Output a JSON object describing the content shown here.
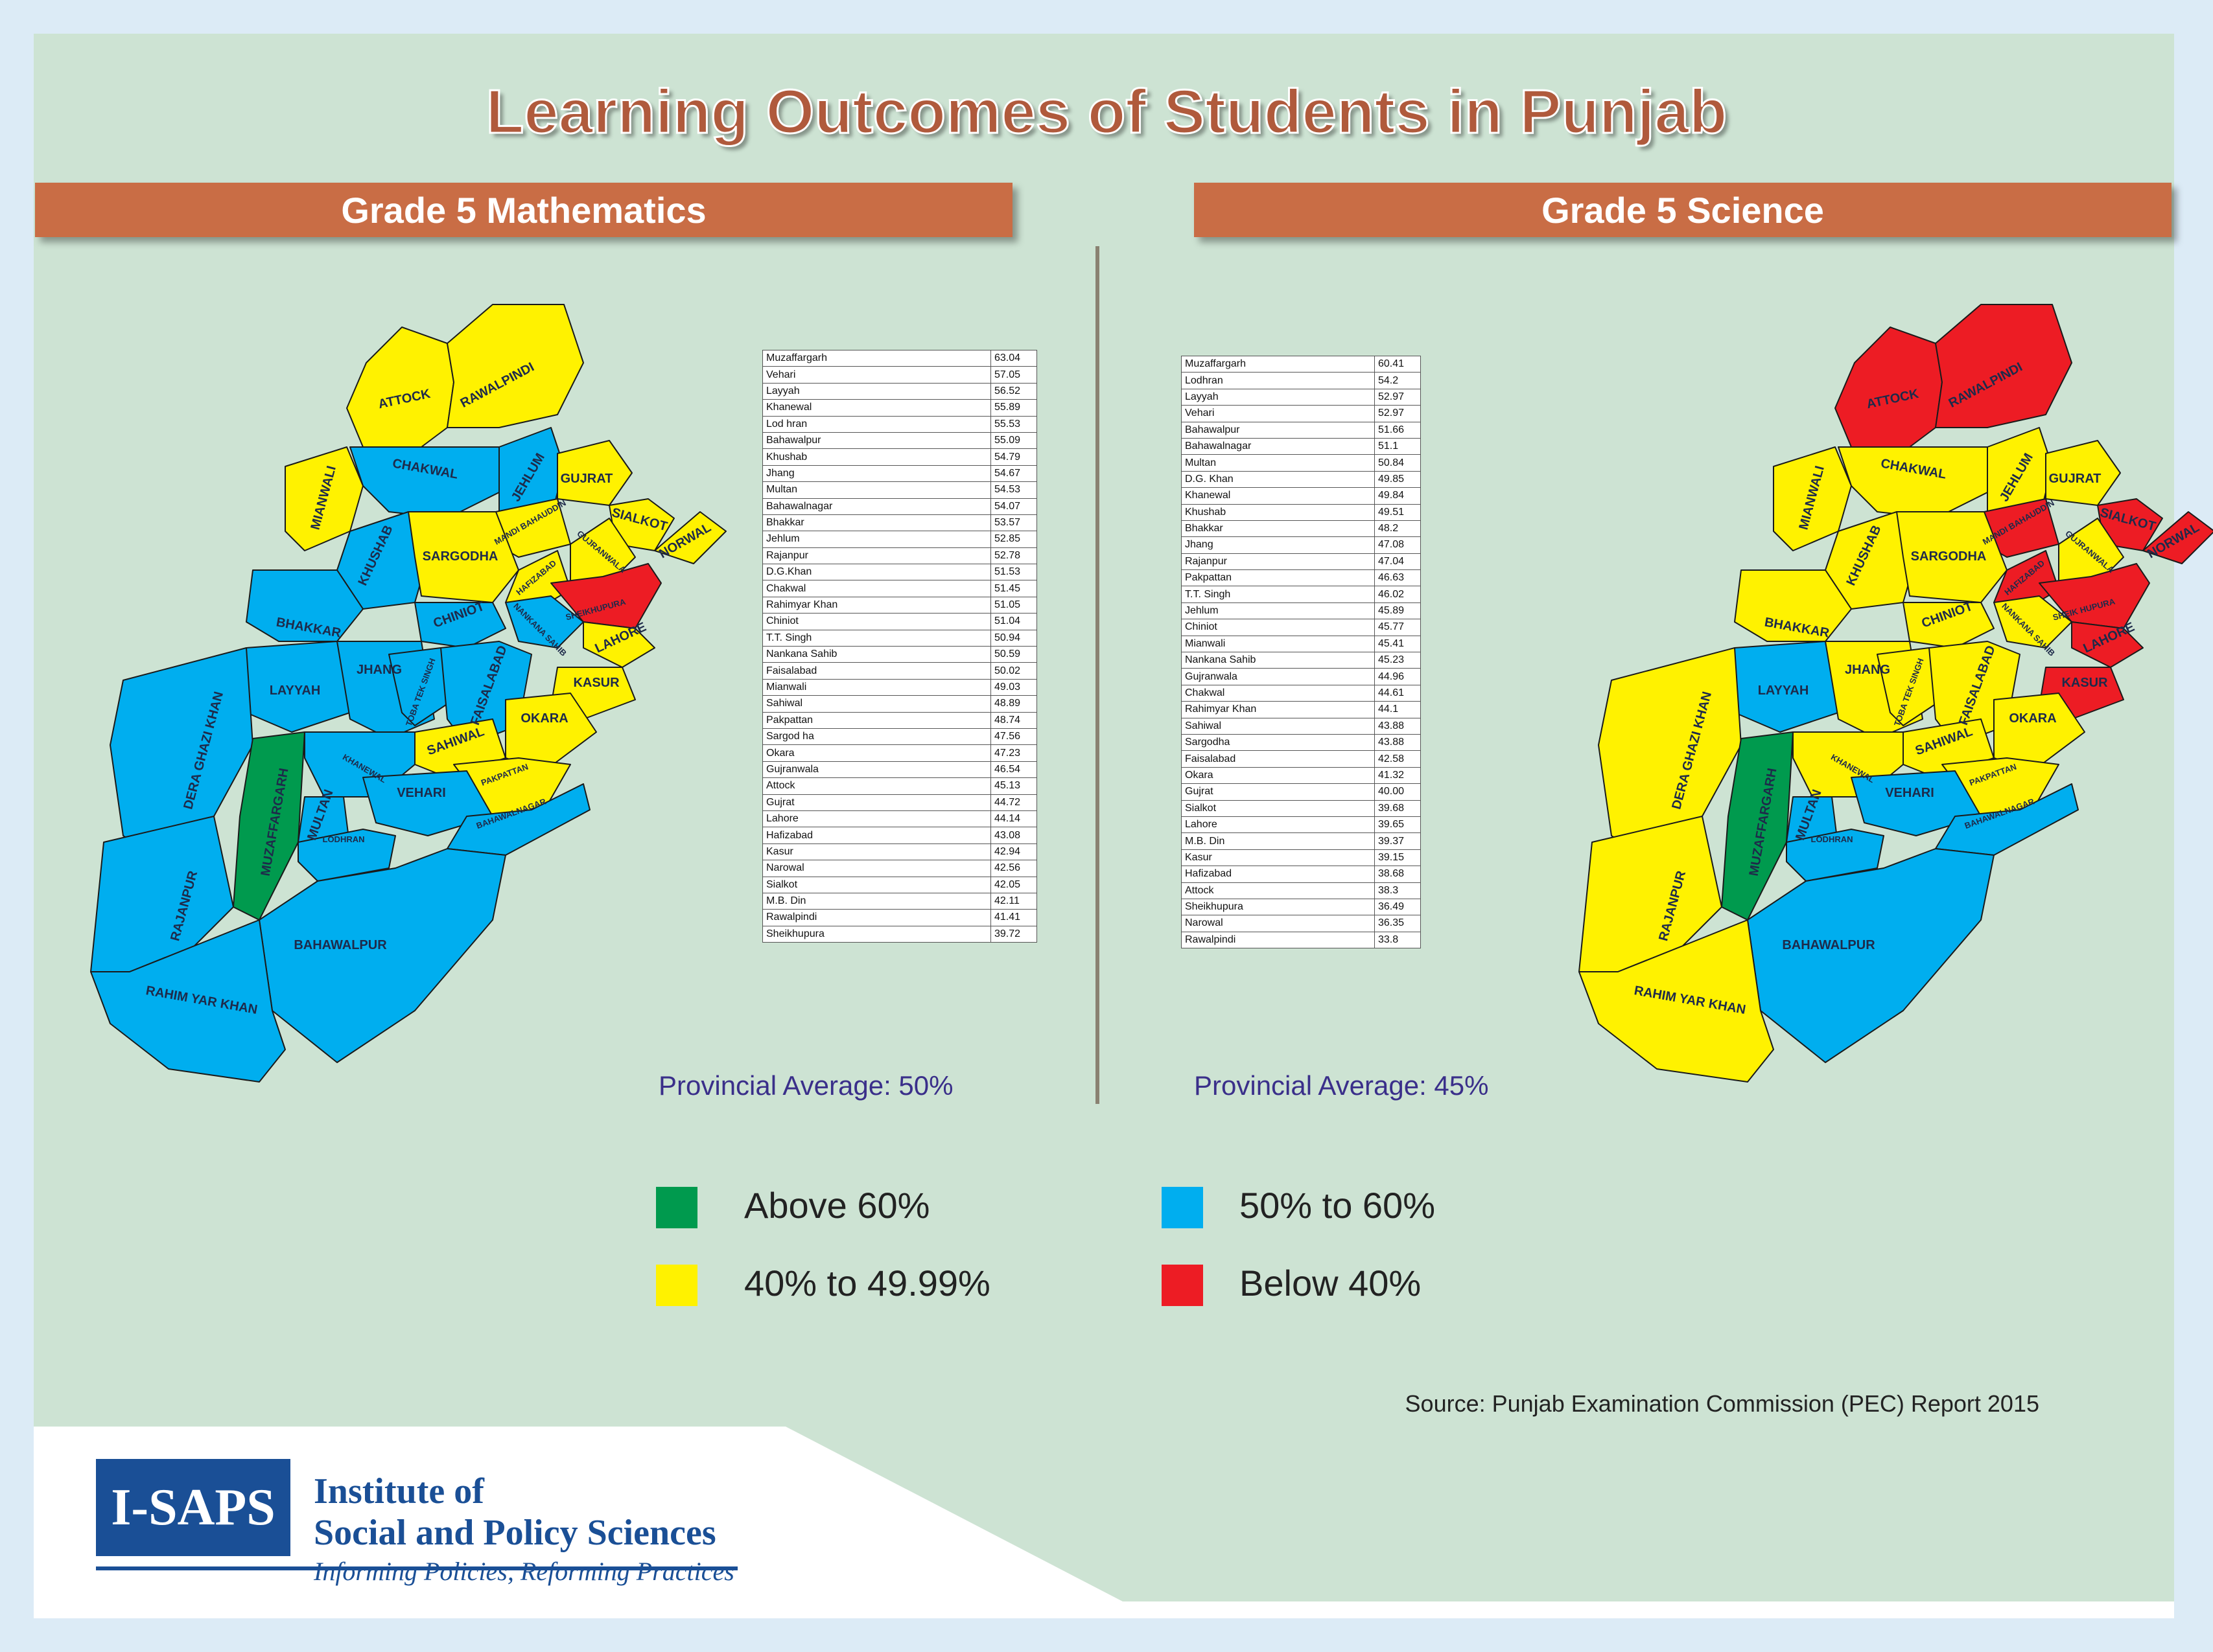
{
  "title": "Learning Outcomes of Students in Punjab",
  "colors": {
    "above_60": "#009a4e",
    "range_50_60": "#00aeef",
    "range_40_50": "#fff200",
    "below_40": "#ed1c24",
    "banner": "#c96d45",
    "background": "#cde3d3"
  },
  "panels": [
    {
      "heading": "Grade 5 Mathematics",
      "average": "Provincial Average: 50%",
      "table": [
        [
          "Muzaffargarh",
          "63.04"
        ],
        [
          "Vehari",
          "57.05"
        ],
        [
          "Layyah",
          "56.52"
        ],
        [
          "Khanewal",
          "55.89"
        ],
        [
          "Lod hran",
          "55.53"
        ],
        [
          "Bahawalpur",
          "55.09"
        ],
        [
          "Khushab",
          "54.79"
        ],
        [
          "Jhang",
          "54.67"
        ],
        [
          "Multan",
          "54.53"
        ],
        [
          "Bahawalnagar",
          "54.07"
        ],
        [
          "Bhakkar",
          "53.57"
        ],
        [
          "Jehlum",
          "52.85"
        ],
        [
          "Rajanpur",
          "52.78"
        ],
        [
          "D.G.Khan",
          "51.53"
        ],
        [
          "Chakwal",
          "51.45"
        ],
        [
          "Rahimyar Khan",
          "51.05"
        ],
        [
          "Chiniot",
          "51.04"
        ],
        [
          "T.T. Singh",
          "50.94"
        ],
        [
          "Nankana Sahib",
          "50.59"
        ],
        [
          "Faisalabad",
          "50.02"
        ],
        [
          "Mianwali",
          "49.03"
        ],
        [
          "Sahiwal",
          "48.89"
        ],
        [
          "Pakpattan",
          "48.74"
        ],
        [
          "Sargod ha",
          "47.56"
        ],
        [
          "Okara",
          "47.23"
        ],
        [
          "Gujranwala",
          "46.54"
        ],
        [
          "Attock",
          "45.13"
        ],
        [
          "Gujrat",
          "44.72"
        ],
        [
          "Lahore",
          "44.14"
        ],
        [
          "Hafizabad",
          "43.08"
        ],
        [
          "Kasur",
          "42.94"
        ],
        [
          "Narowal",
          "42.56"
        ],
        [
          "Sialkot",
          "42.05"
        ],
        [
          "M.B. Din",
          "42.11"
        ],
        [
          "Rawalpindi",
          "41.41"
        ],
        [
          "Sheikhupura",
          "39.72"
        ]
      ],
      "map_labels": {
        "attock": "ATTOCK",
        "rawalpindi": "RAWALPINDI",
        "chakwal": "CHAKWAL",
        "jehlum": "JEHLUM",
        "mianwali": "MIANWALI",
        "gujrat": "GUJRAT",
        "sialkot": "SIALKOT",
        "norwal": "NORWAL",
        "mandi": "MANDI BAHAUDDIN",
        "khushab": "KHUSHAB",
        "sargodha": "SARGODHA",
        "hafizabad": "HAFIZABAD",
        "gujranwala": "GUJRANWALA",
        "sheikhupura": "SHEIKHUPURA",
        "bhakkar": "BHAKKAR",
        "chiniot": "CHINIOT",
        "nankana": "NANKANA SAHIB",
        "lahore": "LAHORE",
        "layyah": "LAYYAH",
        "jhang": "JHANG",
        "toba": "TOBA TEK SINGH",
        "faisalabad": "FAISALABAD",
        "kasur": "KASUR",
        "dgkhan": "DERA GHAZI KHAN",
        "muzaffargarh": "MUZAFFARGARH",
        "sahiwal": "SAHIWAL",
        "okara": "OKARA",
        "khanewal": "KHANEWAL",
        "pakpattan": "PAKPATTAN",
        "multan": "MULTAN",
        "vehari": "VEHARI",
        "bahawalnagar": "BAHAWALNAGAR",
        "lodhran": "LODHRAN",
        "rajanpur": "RAJANPUR",
        "bahawalpur": "BAHAWALPUR",
        "rahimyarkhan": "RAHIM YAR KHAN"
      },
      "district_band": {
        "attock": "range_40_50",
        "rawalpindi": "range_40_50",
        "chakwal": "range_50_60",
        "jehlum": "range_50_60",
        "mianwali": "range_40_50",
        "gujrat": "range_40_50",
        "sialkot": "range_40_50",
        "norwal": "range_40_50",
        "mandi": "range_40_50",
        "khushab": "range_50_60",
        "sargodha": "range_40_50",
        "hafizabad": "range_40_50",
        "gujranwala": "range_40_50",
        "sheikhupura": "below_40",
        "bhakkar": "range_50_60",
        "chiniot": "range_50_60",
        "nankana": "range_50_60",
        "lahore": "range_40_50",
        "layyah": "range_50_60",
        "jhang": "range_50_60",
        "toba": "range_50_60",
        "faisalabad": "range_50_60",
        "kasur": "range_40_50",
        "dgkhan": "range_50_60",
        "muzaffargarh": "above_60",
        "sahiwal": "range_40_50",
        "okara": "range_40_50",
        "khanewal": "range_50_60",
        "pakpattan": "range_40_50",
        "multan": "range_50_60",
        "vehari": "range_50_60",
        "bahawalnagar": "range_50_60",
        "lodhran": "range_50_60",
        "rajanpur": "range_50_60",
        "bahawalpur": "range_50_60",
        "rahimyarkhan": "range_50_60"
      }
    },
    {
      "heading": "Grade 5 Science",
      "average": "Provincial Average: 45%",
      "table": [
        [
          "Muzaffargarh",
          "60.41"
        ],
        [
          "Lodhran",
          "54.2"
        ],
        [
          "Layyah",
          "52.97"
        ],
        [
          "Vehari",
          "52.97"
        ],
        [
          "Bahawalpur",
          "51.66"
        ],
        [
          "Bahawalnagar",
          "51.1"
        ],
        [
          "Multan",
          "50.84"
        ],
        [
          "D.G. Khan",
          "49.85"
        ],
        [
          "Khanewal",
          "49.84"
        ],
        [
          "Khushab",
          "49.51"
        ],
        [
          "Bhakkar",
          "48.2"
        ],
        [
          "Jhang",
          "47.08"
        ],
        [
          "Rajanpur",
          "47.04"
        ],
        [
          "Pakpattan",
          "46.63"
        ],
        [
          "T.T. Singh",
          "46.02"
        ],
        [
          "Jehlum",
          "45.89"
        ],
        [
          "Chiniot",
          "45.77"
        ],
        [
          "Mianwali",
          "45.41"
        ],
        [
          "Nankana Sahib",
          "45.23"
        ],
        [
          "Gujranwala",
          "44.96"
        ],
        [
          "Chakwal",
          "44.61"
        ],
        [
          "Rahimyar Khan",
          "44.1"
        ],
        [
          "Sahiwal",
          "43.88"
        ],
        [
          "Sargodha",
          "43.88"
        ],
        [
          "Faisalabad",
          "42.58"
        ],
        [
          "Okara",
          "41.32"
        ],
        [
          "Gujrat",
          "40.00"
        ],
        [
          "Sialkot",
          "39.68"
        ],
        [
          "Lahore",
          "39.65"
        ],
        [
          "M.B. Din",
          "39.37"
        ],
        [
          "Kasur",
          "39.15"
        ],
        [
          "Hafizabad",
          "38.68"
        ],
        [
          "Attock",
          "38.3"
        ],
        [
          "Sheikhupura",
          "36.49"
        ],
        [
          "Narowal",
          "36.35"
        ],
        [
          "Rawalpindi",
          "33.8"
        ]
      ],
      "map_labels": {
        "attock": "ATTOCK",
        "rawalpindi": "RAWALPINDI",
        "chakwal": "CHAKWAL",
        "jehlum": "JEHLUM",
        "mianwali": "MIANWALI",
        "gujrat": "GUJRAT",
        "sialkot": "SIALKOT",
        "norwal": "NORWAL",
        "mandi": "MANDI BAHAUDDIN",
        "khushab": "KHUSHAB",
        "sargodha": "SARGODHA",
        "hafizabad": "HAFIZABAD",
        "gujranwala": "GUJRANWALA",
        "sheikhupura": "SHEIK HUPURA",
        "bhakkar": "BHAKKAR",
        "chiniot": "CHINIOT",
        "nankana": "NANKANA SAHIB",
        "lahore": "LAHORE",
        "layyah": "LAYYAH",
        "jhang": "JHANG",
        "toba": "TOBA TEK SINGH",
        "faisalabad": "FAISALABAD",
        "kasur": "KASUR",
        "dgkhan": "DERA GHAZI KHAN",
        "muzaffargarh": "MUZAFFARGARH",
        "sahiwal": "SAHIWAL",
        "okara": "OKARA",
        "khanewal": "KHANEWAL",
        "pakpattan": "PAKPATTAN",
        "multan": "MULTAN",
        "vehari": "VEHARI",
        "bahawalnagar": "BAHAWALNAGAR",
        "lodhran": "LODHRAN",
        "rajanpur": "RAJANPUR",
        "bahawalpur": "BAHAWALPUR",
        "rahimyarkhan": "RAHIM YAR KHAN"
      },
      "district_band": {
        "attock": "below_40",
        "rawalpindi": "below_40",
        "chakwal": "range_40_50",
        "jehlum": "range_40_50",
        "mianwali": "range_40_50",
        "gujrat": "range_40_50",
        "sialkot": "below_40",
        "norwal": "below_40",
        "mandi": "below_40",
        "khushab": "range_40_50",
        "sargodha": "range_40_50",
        "hafizabad": "below_40",
        "gujranwala": "range_40_50",
        "sheikhupura": "below_40",
        "bhakkar": "range_40_50",
        "chiniot": "range_40_50",
        "nankana": "range_40_50",
        "lahore": "below_40",
        "layyah": "range_50_60",
        "jhang": "range_40_50",
        "toba": "range_40_50",
        "faisalabad": "range_40_50",
        "kasur": "below_40",
        "dgkhan": "range_40_50",
        "muzaffargarh": "above_60",
        "sahiwal": "range_40_50",
        "okara": "range_40_50",
        "khanewal": "range_40_50",
        "pakpattan": "range_40_50",
        "multan": "range_50_60",
        "vehari": "range_50_60",
        "bahawalnagar": "range_50_60",
        "lodhran": "range_50_60",
        "rajanpur": "range_40_50",
        "bahawalpur": "range_50_60",
        "rahimyarkhan": "range_40_50"
      }
    }
  ],
  "legend": [
    {
      "label": "Above 60%",
      "band": "above_60"
    },
    {
      "label": "50% to 60%",
      "band": "range_50_60"
    },
    {
      "label": "40% to 49.99%",
      "band": "range_40_50"
    },
    {
      "label": "Below 40%",
      "band": "below_40"
    }
  ],
  "source": "Source: Punjab Examination Commission (PEC) Report 2015",
  "logo": {
    "mark": "I-SAPS",
    "line1": "Institute of",
    "line2": "Social and Policy Sciences",
    "tagline": "Informing Policies, Reforming Practices"
  }
}
